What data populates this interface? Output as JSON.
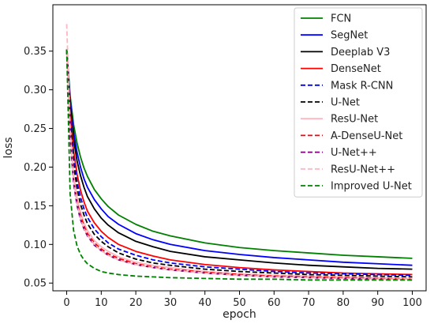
{
  "chart_data": {
    "type": "line",
    "xlabel": "epoch",
    "ylabel": "loss",
    "xlim": [
      -4,
      104
    ],
    "ylim": [
      0.04,
      0.41
    ],
    "x_ticks": [
      0,
      10,
      20,
      30,
      40,
      50,
      60,
      70,
      80,
      90,
      100
    ],
    "y_ticks": [
      0.05,
      0.1,
      0.15,
      0.2,
      0.25,
      0.3,
      0.35
    ],
    "x_tick_labels": [
      "0",
      "10",
      "20",
      "30",
      "40",
      "50",
      "60",
      "70",
      "80",
      "90",
      "100"
    ],
    "y_tick_labels": [
      "0.05",
      "0.10",
      "0.15",
      "0.20",
      "0.25",
      "0.30",
      "0.35"
    ],
    "grid": false,
    "legend_position": "top-right",
    "x": [
      0,
      1,
      2,
      3,
      4,
      5,
      6,
      8,
      10,
      12,
      15,
      20,
      25,
      30,
      40,
      50,
      60,
      70,
      80,
      90,
      100
    ],
    "series": [
      {
        "name": "FCN",
        "color": "#008000",
        "style": "solid",
        "values": [
          0.352,
          0.292,
          0.255,
          0.231,
          0.213,
          0.199,
          0.188,
          0.171,
          0.159,
          0.149,
          0.138,
          0.126,
          0.117,
          0.111,
          0.102,
          0.096,
          0.092,
          0.089,
          0.086,
          0.084,
          0.082
        ]
      },
      {
        "name": "SegNet",
        "color": "#0000ff",
        "style": "solid",
        "values": [
          0.352,
          0.287,
          0.245,
          0.219,
          0.2,
          0.185,
          0.174,
          0.158,
          0.146,
          0.136,
          0.126,
          0.114,
          0.106,
          0.1,
          0.092,
          0.087,
          0.083,
          0.08,
          0.077,
          0.075,
          0.073
        ]
      },
      {
        "name": "Deeplab V3",
        "color": "#000000",
        "style": "solid",
        "values": [
          0.352,
          0.281,
          0.236,
          0.208,
          0.189,
          0.174,
          0.162,
          0.146,
          0.134,
          0.125,
          0.115,
          0.104,
          0.097,
          0.091,
          0.084,
          0.08,
          0.076,
          0.073,
          0.071,
          0.069,
          0.068
        ]
      },
      {
        "name": "DenseNet",
        "color": "#ff0000",
        "style": "solid",
        "values": [
          0.352,
          0.272,
          0.221,
          0.191,
          0.17,
          0.155,
          0.143,
          0.128,
          0.117,
          0.109,
          0.1,
          0.091,
          0.085,
          0.08,
          0.074,
          0.07,
          0.067,
          0.065,
          0.063,
          0.062,
          0.061
        ]
      },
      {
        "name": "Mask R-CNN",
        "color": "#0000ff",
        "style": "dashed",
        "values": [
          0.352,
          0.265,
          0.212,
          0.181,
          0.161,
          0.146,
          0.135,
          0.12,
          0.11,
          0.102,
          0.094,
          0.086,
          0.08,
          0.076,
          0.071,
          0.068,
          0.065,
          0.063,
          0.062,
          0.061,
          0.06
        ]
      },
      {
        "name": "U-Net",
        "color": "#000000",
        "style": "dashed",
        "values": [
          0.352,
          0.258,
          0.203,
          0.172,
          0.152,
          0.138,
          0.127,
          0.113,
          0.104,
          0.097,
          0.089,
          0.081,
          0.076,
          0.073,
          0.068,
          0.065,
          0.063,
          0.061,
          0.06,
          0.059,
          0.058
        ]
      },
      {
        "name": "ResU-Net",
        "color": "#ffb6c1",
        "style": "solid",
        "values": [
          0.35,
          0.245,
          0.19,
          0.161,
          0.142,
          0.128,
          0.118,
          0.105,
          0.097,
          0.091,
          0.084,
          0.077,
          0.073,
          0.07,
          0.065,
          0.062,
          0.06,
          0.059,
          0.058,
          0.057,
          0.056
        ]
      },
      {
        "name": "A-DenseU-Net",
        "color": "#ff0000",
        "style": "dashed",
        "values": [
          0.352,
          0.24,
          0.184,
          0.155,
          0.137,
          0.124,
          0.114,
          0.102,
          0.094,
          0.088,
          0.082,
          0.075,
          0.071,
          0.068,
          0.064,
          0.061,
          0.059,
          0.058,
          0.057,
          0.056,
          0.055
        ]
      },
      {
        "name": "U-Net++",
        "color": "#800080",
        "style": "dashed",
        "values": [
          0.352,
          0.236,
          0.179,
          0.15,
          0.132,
          0.12,
          0.111,
          0.099,
          0.092,
          0.086,
          0.08,
          0.074,
          0.07,
          0.067,
          0.063,
          0.06,
          0.058,
          0.057,
          0.056,
          0.055,
          0.054
        ]
      },
      {
        "name": "ResU-Net++",
        "color": "#ffb6c1",
        "style": "dashed",
        "values": [
          0.385,
          0.25,
          0.185,
          0.153,
          0.134,
          0.121,
          0.112,
          0.1,
          0.092,
          0.086,
          0.08,
          0.074,
          0.07,
          0.067,
          0.063,
          0.06,
          0.058,
          0.057,
          0.056,
          0.055,
          0.055
        ]
      },
      {
        "name": "Improved U-Net",
        "color": "#008000",
        "style": "dashed",
        "values": [
          0.352,
          0.165,
          0.118,
          0.098,
          0.087,
          0.08,
          0.075,
          0.069,
          0.065,
          0.063,
          0.061,
          0.059,
          0.058,
          0.057,
          0.056,
          0.055,
          0.055,
          0.054,
          0.054,
          0.054,
          0.054
        ]
      }
    ]
  }
}
